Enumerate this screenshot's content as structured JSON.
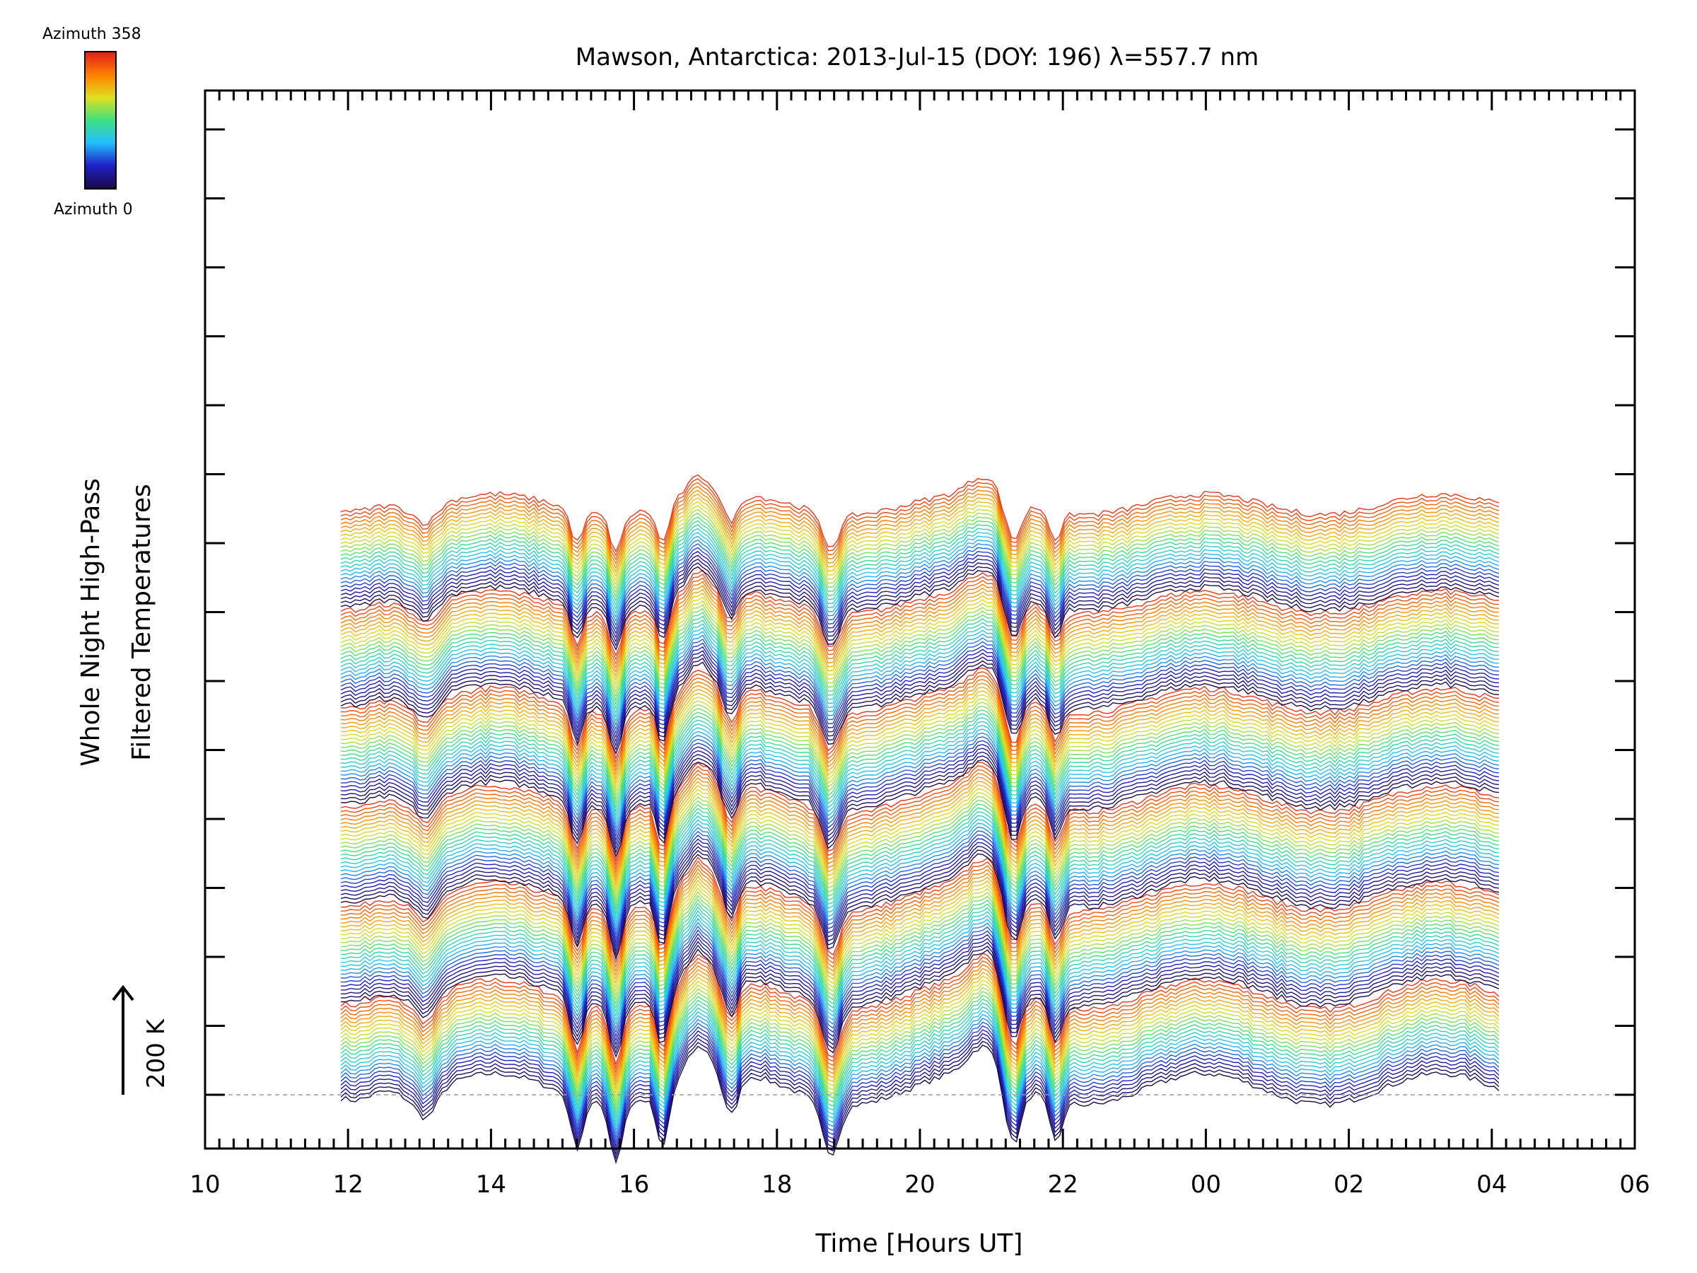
{
  "chart_data": {
    "type": "line",
    "title": "Mawson, Antarctica: 2013-Jul-15 (DOY: 196) λ=557.7 nm",
    "xlabel": "Time [Hours UT]",
    "ylabel_line1": "Whole Night High-Pass",
    "ylabel_line2": "Filtered Temperatures",
    "scale_label": "200 K",
    "x_tick_labels": [
      "10",
      "12",
      "14",
      "16",
      "18",
      "20",
      "22",
      "00",
      "02",
      "04",
      "06"
    ],
    "xlim_hours": [
      10,
      30
    ],
    "data_range_hours": [
      11.9,
      28.1
    ],
    "colorbar": {
      "top_label": "Azimuth 358",
      "bottom_label": "Azimuth 0",
      "colormap": "rainbow",
      "colors": [
        "#1a0a4a",
        "#2020c8",
        "#20c0ff",
        "#40e080",
        "#e0e020",
        "#ff8000",
        "#e02020"
      ]
    },
    "series_description_count": 150,
    "group_count": 6,
    "event_hours": [
      15.2,
      15.75,
      16.4,
      17.35,
      18.75,
      21.3,
      21.9
    ],
    "grid": false,
    "legend": "colorbar top-left"
  }
}
